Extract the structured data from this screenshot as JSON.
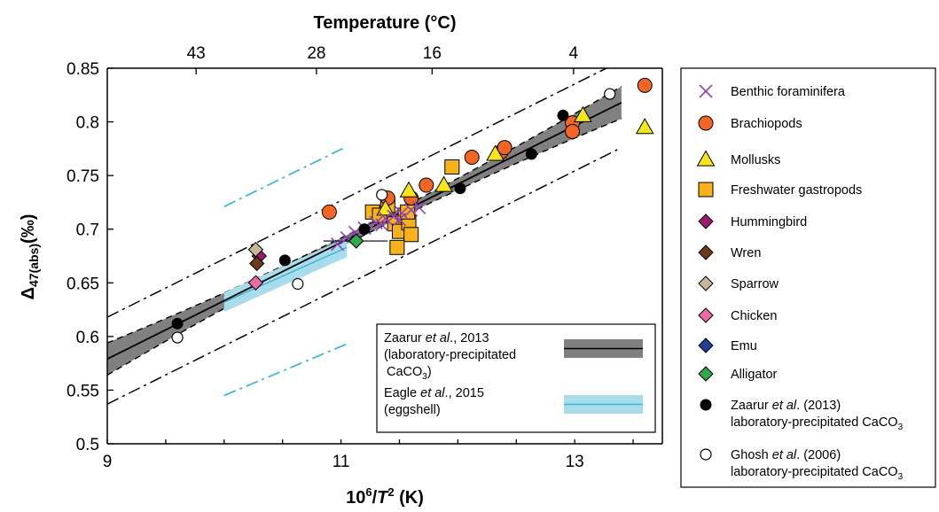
{
  "chart_data": {
    "type": "scatter",
    "xlabel": {
      "main": "10",
      "sup": "6",
      "mid": "/",
      "ital": "T",
      "sup2": "2",
      "unit": " (K)"
    },
    "ylabel": {
      "main": "Δ",
      "sub": "47(abs)",
      "unit": "(‰)"
    },
    "top_title": "Temperature (°C)",
    "xlim": [
      9,
      13.75
    ],
    "ylim": [
      0.5,
      0.85
    ],
    "x_ticks": [
      {
        "value": 9,
        "label": "9"
      },
      {
        "value": 11,
        "label": "11"
      },
      {
        "value": 13,
        "label": "13"
      }
    ],
    "y_ticks": [
      {
        "value": 0.5,
        "label": "0.5"
      },
      {
        "value": 0.55,
        "label": "0.55"
      },
      {
        "value": 0.6,
        "label": "0.6"
      },
      {
        "value": 0.65,
        "label": "0.65"
      },
      {
        "value": 0.7,
        "label": "0.7"
      },
      {
        "value": 0.75,
        "label": "0.75"
      },
      {
        "value": 0.8,
        "label": "0.8"
      },
      {
        "value": 0.85,
        "label": "0.85"
      }
    ],
    "top_ticks": [
      {
        "x": 9.76,
        "label": "43"
      },
      {
        "x": 10.79,
        "label": "28"
      },
      {
        "x": 11.78,
        "label": "16"
      },
      {
        "x": 12.99,
        "label": "4"
      }
    ],
    "fit_line": {
      "x": [
        9,
        13.4
      ],
      "y": [
        0.579,
        0.818
      ]
    },
    "fit_band_halfwidth_ends": [
      0.016,
      0.004,
      0.014
    ],
    "prediction_upper": {
      "x": [
        9,
        13.4
      ],
      "y": [
        0.618,
        0.857
      ]
    },
    "prediction_lower": {
      "x": [
        9,
        13.4
      ],
      "y": [
        0.537,
        0.776
      ]
    },
    "eggshell_line": {
      "x": [
        10.0,
        11.05
      ],
      "y": [
        0.632,
        0.683
      ]
    },
    "eggshell_upper": {
      "x": [
        10.0,
        11.05
      ],
      "y": [
        0.721,
        0.777
      ]
    },
    "eggshell_lower": {
      "x": [
        10.0,
        11.05
      ],
      "y": [
        0.545,
        0.593
      ]
    },
    "series": [
      {
        "name": "Benthic foraminifera",
        "marker": "cross",
        "color": "#8e44ad",
        "points": [
          [
            10.97,
            0.686
          ],
          [
            11.05,
            0.692
          ],
          [
            11.12,
            0.697
          ],
          [
            11.2,
            0.701
          ],
          [
            11.3,
            0.706
          ],
          [
            11.38,
            0.71
          ],
          [
            11.45,
            0.712
          ],
          [
            11.52,
            0.715
          ],
          [
            11.6,
            0.718
          ],
          [
            11.67,
            0.72
          ],
          [
            11.5,
            0.709
          ],
          [
            11.35,
            0.704
          ]
        ]
      },
      {
        "name": "Brachiopods",
        "marker": "circle",
        "color": "#f26522",
        "points": [
          [
            10.9,
            0.716
          ],
          [
            11.4,
            0.729
          ],
          [
            11.6,
            0.729
          ],
          [
            11.73,
            0.741
          ],
          [
            12.12,
            0.767
          ],
          [
            12.37,
            0.772
          ],
          [
            12.4,
            0.776
          ],
          [
            12.98,
            0.799
          ],
          [
            12.98,
            0.791
          ],
          [
            13.6,
            0.834
          ]
        ]
      },
      {
        "name": "Mollusks",
        "marker": "triangle",
        "color": "#f7e41b",
        "points": [
          [
            11.38,
            0.719
          ],
          [
            11.58,
            0.736
          ],
          [
            11.88,
            0.741
          ],
          [
            12.32,
            0.77
          ],
          [
            13.07,
            0.806
          ],
          [
            13.6,
            0.795
          ]
        ]
      },
      {
        "name": "Freshwater gastropods",
        "marker": "square",
        "color": "#f7b21b",
        "points": [
          [
            11.27,
            0.716
          ],
          [
            11.33,
            0.713
          ],
          [
            11.4,
            0.722
          ],
          [
            11.46,
            0.705
          ],
          [
            11.5,
            0.698
          ],
          [
            11.55,
            0.713
          ],
          [
            11.58,
            0.706
          ],
          [
            11.6,
            0.695
          ],
          [
            11.57,
            0.716
          ],
          [
            11.48,
            0.683
          ],
          [
            11.95,
            0.758
          ]
        ]
      },
      {
        "name": "Hummingbird",
        "marker": "diamond",
        "color": "#9b1b6e",
        "points": [
          [
            10.3,
            0.675
          ]
        ]
      },
      {
        "name": "Wren",
        "marker": "diamond",
        "color": "#6b3b1b",
        "points": [
          [
            10.28,
            0.668
          ]
        ]
      },
      {
        "name": "Sparrow",
        "marker": "diamond",
        "color": "#c8b59a",
        "points": [
          [
            10.27,
            0.681
          ]
        ]
      },
      {
        "name": "Chicken",
        "marker": "diamond",
        "color": "#ee6aa7",
        "points": [
          [
            10.27,
            0.65
          ]
        ]
      },
      {
        "name": "Emu",
        "marker": "diamond",
        "color": "#1f3f99",
        "points": []
      },
      {
        "name": "Alligator",
        "marker": "diamond",
        "color": "#2eaa4a",
        "points": [
          [
            11.13,
            0.689
          ]
        ]
      },
      {
        "name": "Zaarur et al. (2013) laboratory-precipitated CaCO3",
        "marker": "dot",
        "color": "#000000",
        "points": [
          [
            9.6,
            0.612
          ],
          [
            10.52,
            0.671
          ],
          [
            11.2,
            0.7
          ],
          [
            12.02,
            0.738
          ],
          [
            12.63,
            0.77
          ],
          [
            12.9,
            0.806
          ]
        ]
      },
      {
        "name": "Ghosh et al. (2006) laboratory-precipitated CaCO3",
        "marker": "open",
        "color": "#ffffff",
        "points": [
          [
            9.6,
            0.599
          ],
          [
            10.63,
            0.649
          ],
          [
            11.35,
            0.732
          ],
          [
            13.3,
            0.826
          ]
        ]
      }
    ],
    "inset_legend": [
      {
        "line1": "Zaarur ",
        "ital": "et al",
        "line1b": "., 2013",
        "line2": "(laboratory-precipitated",
        "line3": "CaCO",
        "sub": "3",
        "line3b": ")"
      },
      {
        "line1": "Eagle ",
        "ital": "et al",
        "line1b": "., 2015",
        "line2": "(eggshell)"
      }
    ],
    "colors": {
      "fit_band": "#808080",
      "eggshell": "#41b6d4",
      "eggshell_band": "#a8dceb"
    }
  }
}
